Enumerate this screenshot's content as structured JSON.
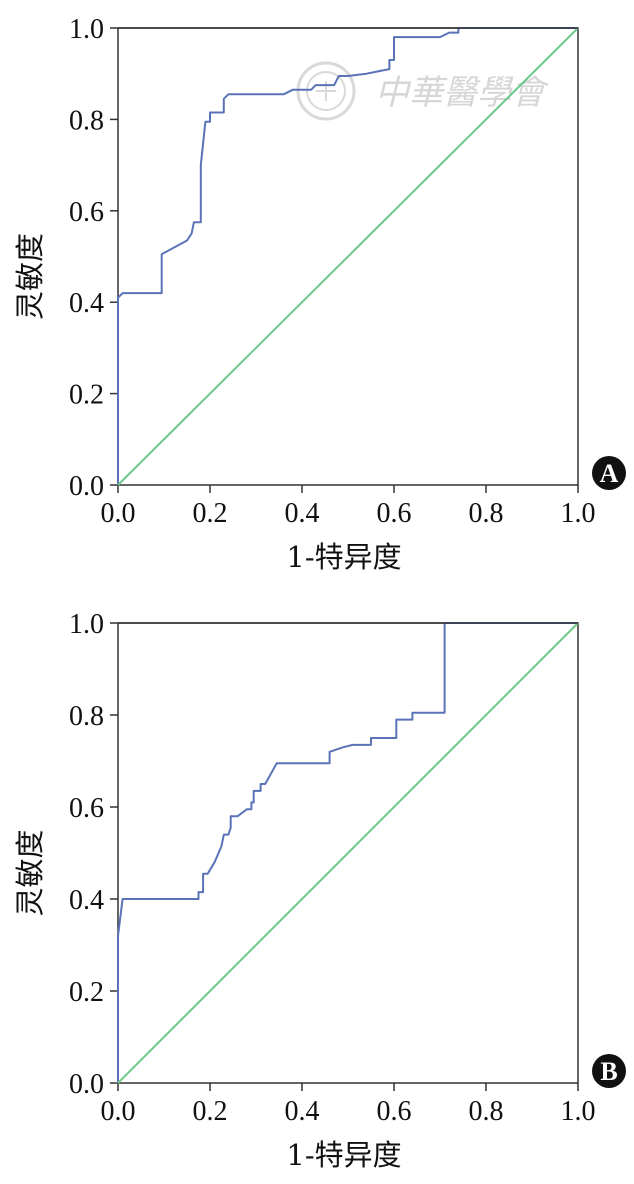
{
  "watermark": {
    "text": "中華醫學會",
    "seal": "seal-icon"
  },
  "colors": {
    "roc": "#5a72b8",
    "reference": "#6cc98a",
    "axis": "#333333",
    "badge": "#111111"
  },
  "chart_data": [
    {
      "type": "line",
      "panel_label": "A",
      "xlabel": "1-特异度",
      "ylabel": "灵敏度",
      "xlim": [
        0,
        1
      ],
      "ylim": [
        0,
        1
      ],
      "xticks": [
        "0.0",
        "0.2",
        "0.4",
        "0.6",
        "0.8",
        "1.0"
      ],
      "yticks": [
        "0.0",
        "0.2",
        "0.4",
        "0.6",
        "0.8",
        "1.0"
      ],
      "grid": false,
      "series": [
        {
          "role": "roc",
          "points": [
            [
              0,
              0
            ],
            [
              0,
              0.41
            ],
            [
              0.01,
              0.42
            ],
            [
              0.095,
              0.42
            ],
            [
              0.095,
              0.505
            ],
            [
              0.15,
              0.535
            ],
            [
              0.16,
              0.55
            ],
            [
              0.165,
              0.575
            ],
            [
              0.18,
              0.575
            ],
            [
              0.18,
              0.7
            ],
            [
              0.19,
              0.795
            ],
            [
              0.2,
              0.795
            ],
            [
              0.2,
              0.815
            ],
            [
              0.23,
              0.815
            ],
            [
              0.23,
              0.845
            ],
            [
              0.24,
              0.855
            ],
            [
              0.36,
              0.855
            ],
            [
              0.38,
              0.865
            ],
            [
              0.42,
              0.865
            ],
            [
              0.43,
              0.875
            ],
            [
              0.47,
              0.875
            ],
            [
              0.48,
              0.895
            ],
            [
              0.5,
              0.895
            ],
            [
              0.54,
              0.9
            ],
            [
              0.59,
              0.91
            ],
            [
              0.59,
              0.93
            ],
            [
              0.6,
              0.93
            ],
            [
              0.6,
              0.98
            ],
            [
              0.7,
              0.98
            ],
            [
              0.72,
              0.99
            ],
            [
              0.74,
              0.99
            ],
            [
              0.74,
              1.0
            ],
            [
              1.0,
              1.0
            ]
          ]
        },
        {
          "role": "reference",
          "points": [
            [
              0,
              0
            ],
            [
              1,
              1
            ]
          ]
        }
      ]
    },
    {
      "type": "line",
      "panel_label": "B",
      "xlabel": "1-特异度",
      "ylabel": "灵敏度",
      "xlim": [
        0,
        1
      ],
      "ylim": [
        0,
        1
      ],
      "xticks": [
        "0.0",
        "0.2",
        "0.4",
        "0.6",
        "0.8",
        "1.0"
      ],
      "yticks": [
        "0.0",
        "0.2",
        "0.4",
        "0.6",
        "0.8",
        "1.0"
      ],
      "grid": false,
      "series": [
        {
          "role": "roc",
          "points": [
            [
              0,
              0
            ],
            [
              0,
              0.32
            ],
            [
              0.01,
              0.4
            ],
            [
              0.175,
              0.4
            ],
            [
              0.175,
              0.415
            ],
            [
              0.185,
              0.415
            ],
            [
              0.185,
              0.455
            ],
            [
              0.195,
              0.455
            ],
            [
              0.21,
              0.48
            ],
            [
              0.225,
              0.515
            ],
            [
              0.23,
              0.54
            ],
            [
              0.24,
              0.54
            ],
            [
              0.245,
              0.555
            ],
            [
              0.245,
              0.58
            ],
            [
              0.26,
              0.58
            ],
            [
              0.28,
              0.595
            ],
            [
              0.29,
              0.595
            ],
            [
              0.29,
              0.61
            ],
            [
              0.295,
              0.61
            ],
            [
              0.295,
              0.635
            ],
            [
              0.31,
              0.635
            ],
            [
              0.31,
              0.65
            ],
            [
              0.32,
              0.65
            ],
            [
              0.345,
              0.695
            ],
            [
              0.46,
              0.695
            ],
            [
              0.46,
              0.72
            ],
            [
              0.49,
              0.73
            ],
            [
              0.51,
              0.735
            ],
            [
              0.55,
              0.735
            ],
            [
              0.55,
              0.75
            ],
            [
              0.605,
              0.75
            ],
            [
              0.605,
              0.79
            ],
            [
              0.64,
              0.79
            ],
            [
              0.64,
              0.805
            ],
            [
              0.71,
              0.805
            ],
            [
              0.71,
              1.0
            ],
            [
              1.0,
              1.0
            ]
          ]
        },
        {
          "role": "reference",
          "points": [
            [
              0,
              0
            ],
            [
              1,
              1
            ]
          ]
        }
      ]
    }
  ]
}
